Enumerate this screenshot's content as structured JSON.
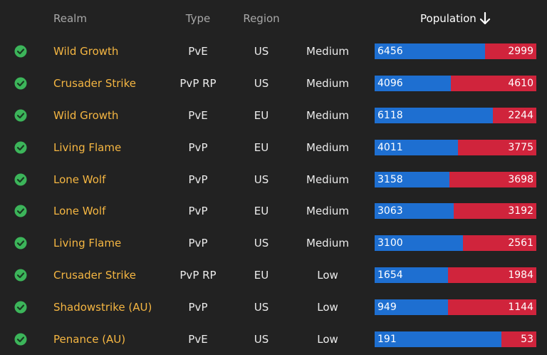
{
  "header": {
    "realm": "Realm",
    "type": "Type",
    "region": "Region",
    "population": "Population",
    "sort_icon": "arrow-down-icon"
  },
  "colors": {
    "alliance": "#1e6fd1",
    "horde": "#d0243c",
    "realm_name": "#f5b642",
    "status_online": "#3cb55a"
  },
  "rows": [
    {
      "status_icon": "check-circle-icon",
      "name": "Wild Growth",
      "type": "PvE",
      "region": "US",
      "load": "Medium",
      "alliance": 6456,
      "horde": 2999
    },
    {
      "status_icon": "check-circle-icon",
      "name": "Crusader Strike",
      "type": "PvP RP",
      "region": "US",
      "load": "Medium",
      "alliance": 4096,
      "horde": 4610
    },
    {
      "status_icon": "check-circle-icon",
      "name": "Wild Growth",
      "type": "PvE",
      "region": "EU",
      "load": "Medium",
      "alliance": 6118,
      "horde": 2244
    },
    {
      "status_icon": "check-circle-icon",
      "name": "Living Flame",
      "type": "PvP",
      "region": "EU",
      "load": "Medium",
      "alliance": 4011,
      "horde": 3775
    },
    {
      "status_icon": "check-circle-icon",
      "name": "Lone Wolf",
      "type": "PvP",
      "region": "US",
      "load": "Medium",
      "alliance": 3158,
      "horde": 3698
    },
    {
      "status_icon": "check-circle-icon",
      "name": "Lone Wolf",
      "type": "PvP",
      "region": "EU",
      "load": "Medium",
      "alliance": 3063,
      "horde": 3192
    },
    {
      "status_icon": "check-circle-icon",
      "name": "Living Flame",
      "type": "PvP",
      "region": "US",
      "load": "Medium",
      "alliance": 3100,
      "horde": 2561
    },
    {
      "status_icon": "check-circle-icon",
      "name": "Crusader Strike",
      "type": "PvP RP",
      "region": "EU",
      "load": "Low",
      "alliance": 1654,
      "horde": 1984
    },
    {
      "status_icon": "check-circle-icon",
      "name": "Shadowstrike (AU)",
      "type": "PvP",
      "region": "US",
      "load": "Low",
      "alliance": 949,
      "horde": 1144
    },
    {
      "status_icon": "check-circle-icon",
      "name": "Penance (AU)",
      "type": "PvE",
      "region": "US",
      "load": "Low",
      "alliance": 191,
      "horde": 53
    }
  ]
}
